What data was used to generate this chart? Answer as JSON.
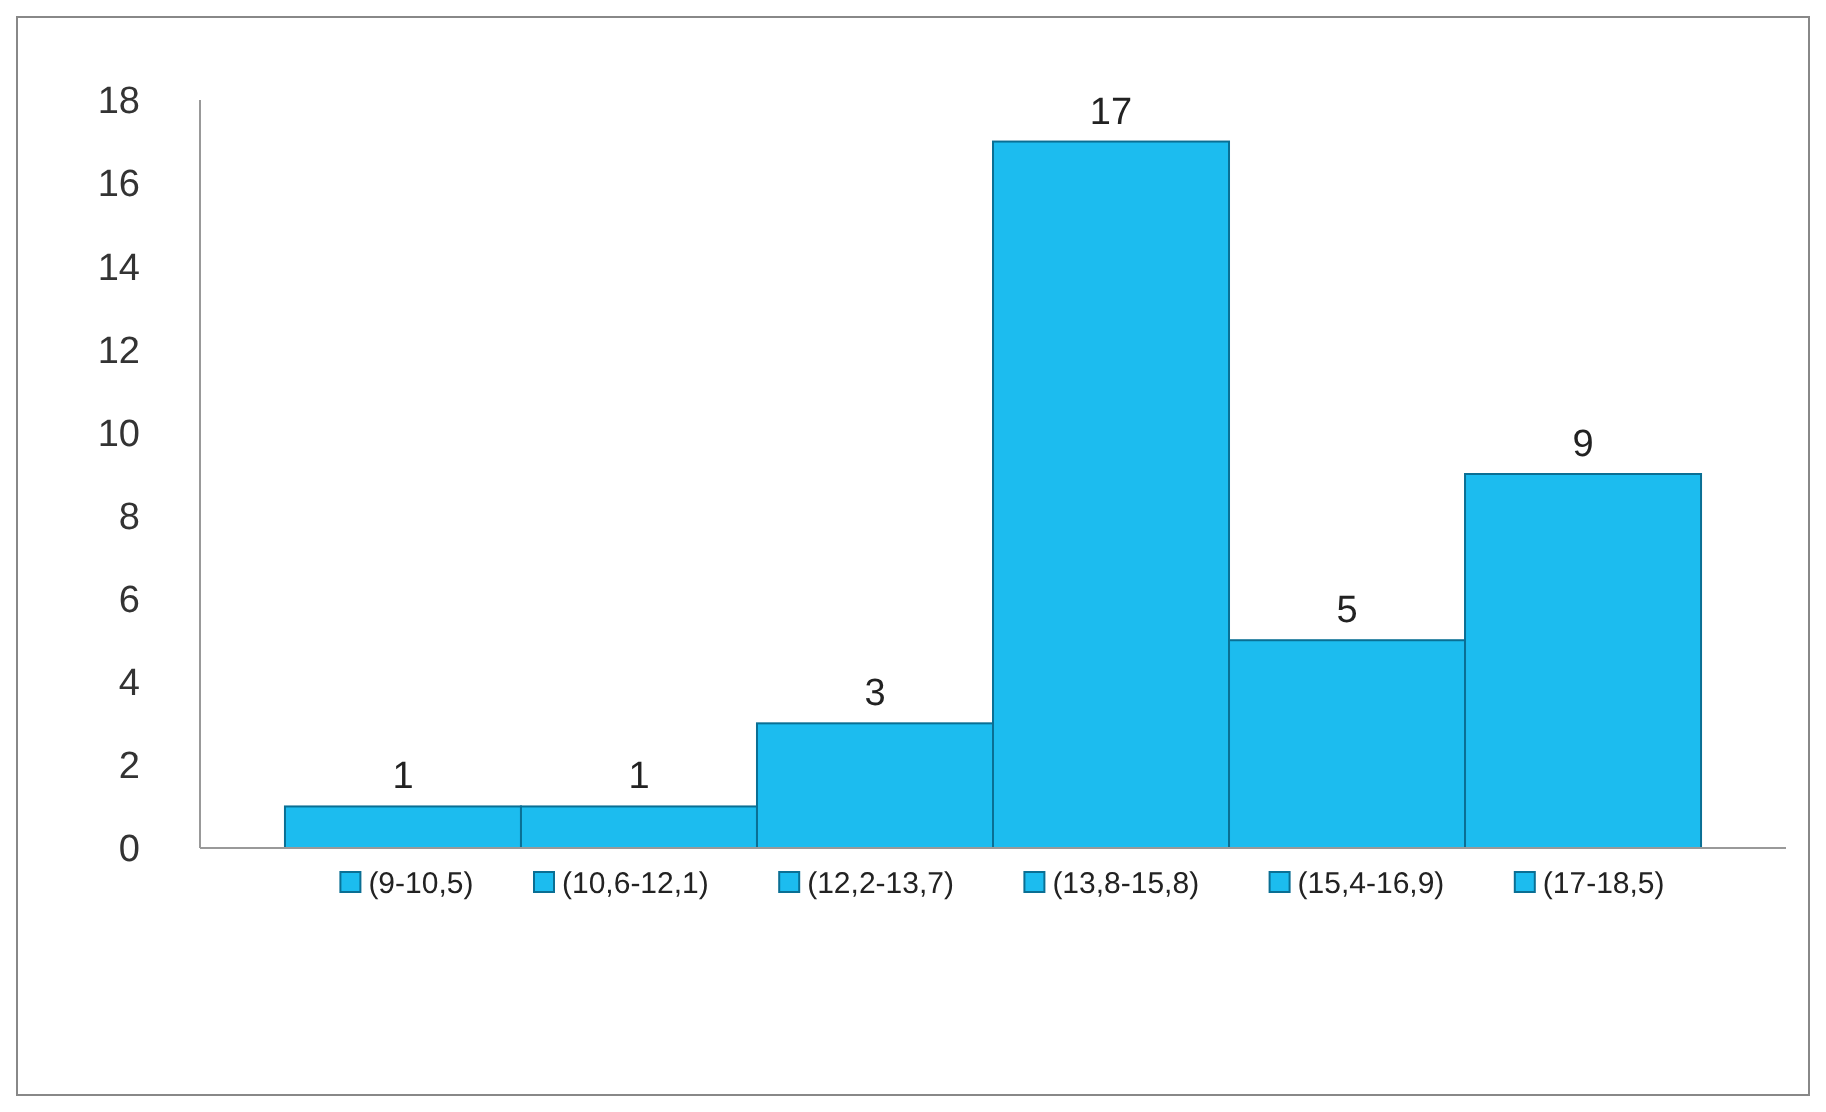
{
  "chart_data": {
    "type": "bar",
    "categories": [
      null,
      null,
      null,
      null,
      null,
      null
    ],
    "series": [
      {
        "name": "(9-10,5)",
        "color": "#1cbcef",
        "values": [
          1,
          null,
          null,
          null,
          null,
          null
        ]
      },
      {
        "name": "(10,6-12,1)",
        "color": "#1cbcef",
        "values": [
          null,
          1,
          null,
          null,
          null,
          null
        ]
      },
      {
        "name": "(12,2-13,7)",
        "color": "#1cbcef",
        "values": [
          null,
          null,
          3,
          null,
          null,
          null
        ]
      },
      {
        "name": "(13,8-15,8)",
        "color": "#1cbcef",
        "values": [
          null,
          null,
          null,
          17,
          null,
          null
        ]
      },
      {
        "name": "(15,4-16,9)",
        "color": "#1cbcef",
        "values": [
          null,
          null,
          null,
          null,
          5,
          null
        ]
      },
      {
        "name": "(17-18,5)",
        "color": "#1cbcef",
        "values": [
          null,
          null,
          null,
          null,
          null,
          9
        ]
      }
    ],
    "ylim": [
      0,
      18
    ],
    "yticks": [
      0,
      2,
      4,
      6,
      8,
      10,
      12,
      14,
      16,
      18
    ],
    "data_labels": true,
    "legend": "bottom",
    "grid": false
  }
}
